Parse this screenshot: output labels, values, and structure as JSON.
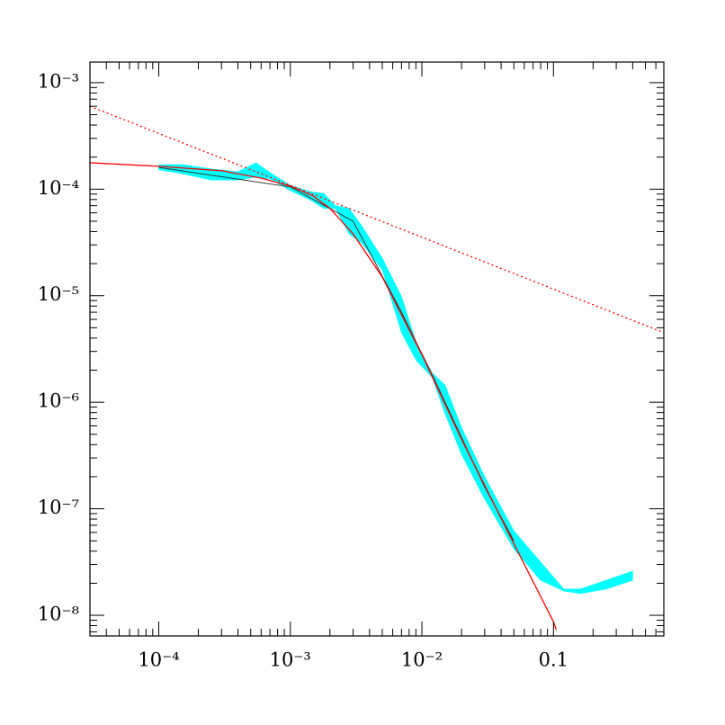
{
  "chart_data": {
    "type": "line",
    "log_x": true,
    "log_y": true,
    "xlim": [
      3e-05,
      0.69
    ],
    "ylim": [
      6.4e-09,
      0.00156
    ],
    "xticks": [
      {
        "value": 0.0001,
        "label": "10⁻⁴"
      },
      {
        "value": 0.001,
        "label": "10⁻³"
      },
      {
        "value": 0.01,
        "label": "10⁻²"
      },
      0.1
    ],
    "yticks": [
      {
        "value": 1e-08,
        "label": "10⁻⁸"
      },
      {
        "value": 1e-07,
        "label": "10⁻⁷"
      },
      {
        "value": 1e-06,
        "label": "10⁻⁶"
      },
      {
        "value": 1e-05,
        "label": "10⁻⁵"
      },
      {
        "value": 0.0001,
        "label": "10⁻⁴"
      },
      {
        "value": 0.001,
        "label": "10⁻³"
      }
    ],
    "xminorticks": [
      3e-05,
      4e-05,
      5e-05,
      6e-05,
      7e-05,
      8e-05,
      9e-05,
      0.0002,
      0.0003,
      0.0004,
      0.0005,
      0.0006,
      0.0007,
      0.0008,
      0.0009,
      0.002,
      0.003,
      0.004,
      0.005,
      0.006,
      0.007,
      0.008,
      0.009,
      0.02,
      0.03,
      0.04,
      0.05,
      0.06,
      0.07,
      0.08,
      0.09,
      0.2,
      0.3,
      0.4,
      0.5,
      0.6
    ],
    "yminorticks": [
      7e-09,
      8e-09,
      9e-09,
      2e-08,
      3e-08,
      4e-08,
      5e-08,
      6e-08,
      7e-08,
      8e-08,
      9e-08,
      2e-07,
      3e-07,
      4e-07,
      5e-07,
      6e-07,
      7e-07,
      8e-07,
      9e-07,
      2e-06,
      3e-06,
      4e-06,
      5e-06,
      6e-06,
      7e-06,
      8e-06,
      9e-06,
      2e-05,
      3e-05,
      4e-05,
      5e-05,
      6e-05,
      7e-05,
      8e-05,
      9e-05,
      0.0002,
      0.0003,
      0.0004,
      0.0005,
      0.0006,
      0.0007,
      0.0008,
      0.0009
    ],
    "series": [
      {
        "style": "band",
        "color": "#00ffff",
        "x": [
          0.0001,
          0.00015,
          0.00025,
          0.0004,
          0.00055,
          0.0007,
          0.001,
          0.0014,
          0.0018,
          0.0022,
          0.0028,
          0.0035,
          0.005,
          0.007,
          0.009,
          0.012,
          0.015,
          0.02,
          0.03,
          0.05,
          0.08,
          0.12,
          0.16,
          0.25,
          0.4
        ],
        "upper": [
          0.00017,
          0.00017,
          0.000155,
          0.000146,
          0.000177,
          0.000143,
          0.000109,
          9.5e-05,
          9.1e-05,
          7e-05,
          6.6e-05,
          4.5e-05,
          2.25e-05,
          9.8e-06,
          3.7e-06,
          1.87e-06,
          1.45e-06,
          5.8e-07,
          2e-07,
          6.2e-08,
          3.15e-08,
          1.76e-08,
          1.76e-08,
          2.13e-08,
          2.6e-08
        ],
        "lower": [
          0.000152,
          0.00014,
          0.000122,
          0.000122,
          0.00013,
          0.000125,
          9.7e-05,
          8e-05,
          6.6e-05,
          6.6e-05,
          3.8e-05,
          3.1e-05,
          1.75e-05,
          4.5e-06,
          2.5e-06,
          1.7e-06,
          7.8e-07,
          3.25e-07,
          1.23e-07,
          4.2e-08,
          2.13e-08,
          1.69e-08,
          1.6e-08,
          1.76e-08,
          2.13e-08
        ]
      },
      {
        "style": "solid",
        "color": "#333333",
        "width": 1,
        "x": [
          0.0001,
          0.001,
          0.003,
          0.007,
          0.012,
          0.03,
          0.05
        ],
        "values": [
          0.00016,
          0.000105,
          5e-05,
          7e-06,
          1.8e-06,
          1.6e-07,
          5e-08
        ]
      },
      {
        "style": "dotted",
        "color": "#ff0000",
        "width": 1.3,
        "x": [
          3e-05,
          0.69
        ],
        "values": [
          0.0006,
          4.5e-06
        ]
      },
      {
        "style": "solid",
        "color": "#ff0000",
        "width": 1.3,
        "x": [
          3e-05,
          0.0001,
          0.0003,
          0.0006,
          0.001,
          0.0015,
          0.002,
          0.003,
          0.005,
          0.007,
          0.01,
          0.02,
          0.05,
          0.1,
          0.105
        ],
        "values": [
          0.000177,
          0.000164,
          0.000149,
          0.000127,
          0.000107,
          8.6e-05,
          6.6e-05,
          3.8e-05,
          1.5e-05,
          6.6e-06,
          2.8e-06,
          4.5e-07,
          4.7e-08,
          8.7e-09,
          7.3e-09
        ]
      }
    ]
  }
}
